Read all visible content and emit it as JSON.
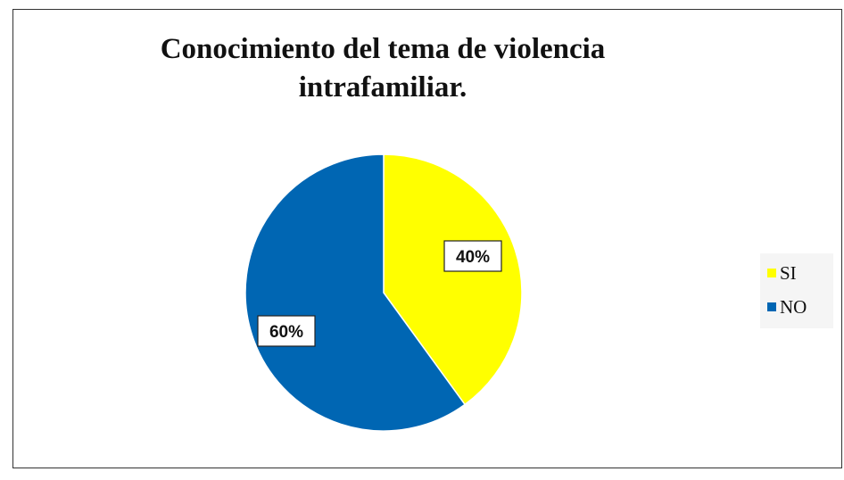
{
  "chart_data": {
    "type": "pie",
    "title_lines": [
      "Conocimiento del tema de violencia",
      "intrafamiliar."
    ],
    "categories": [
      "SI",
      "NO"
    ],
    "values": [
      40,
      60
    ],
    "data_labels": [
      "40%",
      "60%"
    ],
    "colors": [
      "#FFFF00",
      "#0066B3"
    ],
    "legend_position": "right"
  }
}
